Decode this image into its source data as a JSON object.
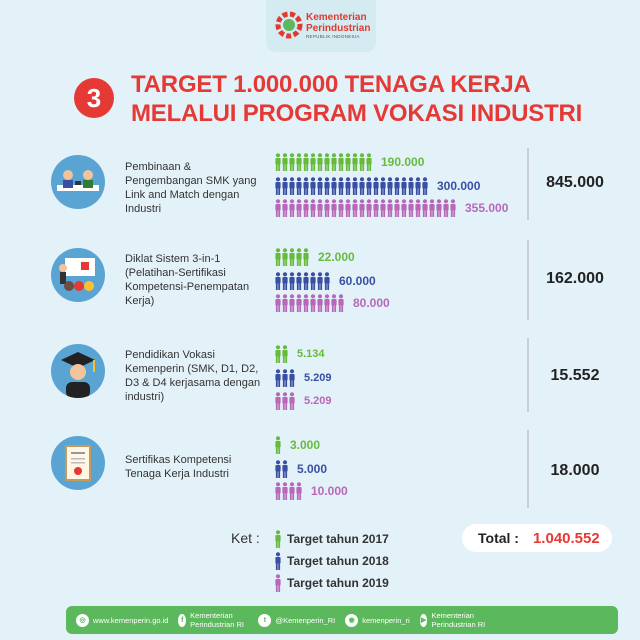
{
  "logo": {
    "line1": "Kementerian",
    "line2": "Perindustrian",
    "sub": "REPUBLIK INDONESIA"
  },
  "badge_number": "3",
  "title": {
    "line1": "TARGET 1.000.000 TENAGA KERJA",
    "line2": "MELALUI PROGRAM VOKASI INDUSTRI"
  },
  "colors": {
    "y2017": "#66bb3c",
    "y2018": "#3a4fa3",
    "y2019": "#b868b8",
    "accent": "#e53935"
  },
  "programs": [
    {
      "label": "Pembinaan & Pengembangan SMK yang Link and Match dengan Industri",
      "icon": "meeting-icon",
      "values": [
        {
          "text": "190.000",
          "icons": 14
        },
        {
          "text": "300.000",
          "icons": 22
        },
        {
          "text": "355.000",
          "icons": 26
        }
      ],
      "total": "845.000"
    },
    {
      "label": "Diklat Sistem 3-in-1 (Pelatihan-Sertifikasi Kompetensi-Penempatan Kerja)",
      "icon": "classroom-icon",
      "values": [
        {
          "text": "22.000",
          "icons": 5
        },
        {
          "text": "60.000",
          "icons": 8
        },
        {
          "text": "80.000",
          "icons": 10
        }
      ],
      "total": "162.000"
    },
    {
      "label": "Pendidikan Vokasi Kemenperin (SMK, D1, D2, D3 & D4 kerjasama dengan industri)",
      "icon": "graduate-icon",
      "values": [
        {
          "text": "5.134",
          "icons": 2
        },
        {
          "text": "5.209",
          "icons": 3
        },
        {
          "text": "5.209",
          "icons": 3
        }
      ],
      "total": "15.552"
    },
    {
      "label": "Sertifikas Kompetensi Tenaga Kerja Industri",
      "icon": "certificate-icon",
      "values": [
        {
          "text": "3.000",
          "icons": 1
        },
        {
          "text": "5.000",
          "icons": 2
        },
        {
          "text": "10.000",
          "icons": 4
        }
      ],
      "total": "18.000"
    }
  ],
  "legend": {
    "ket": "Ket :",
    "items": [
      "Target tahun 2017",
      "Target tahun 2018",
      "Target tahun 2019"
    ]
  },
  "grand_total": {
    "label": "Total :",
    "value": "1.040.552"
  },
  "footer": [
    {
      "icon": "web-icon",
      "glyph": "◎",
      "text": "www.kemenperin.go.id"
    },
    {
      "icon": "facebook-icon",
      "glyph": "f",
      "text": "Kementerian Perindustrian RI"
    },
    {
      "icon": "twitter-icon",
      "glyph": "t",
      "text": "@Kemenperin_RI"
    },
    {
      "icon": "instagram-icon",
      "glyph": "◉",
      "text": "kemenperin_ri"
    },
    {
      "icon": "youtube-icon",
      "glyph": "▶",
      "text": "Kementerian Perindustrian RI"
    }
  ]
}
